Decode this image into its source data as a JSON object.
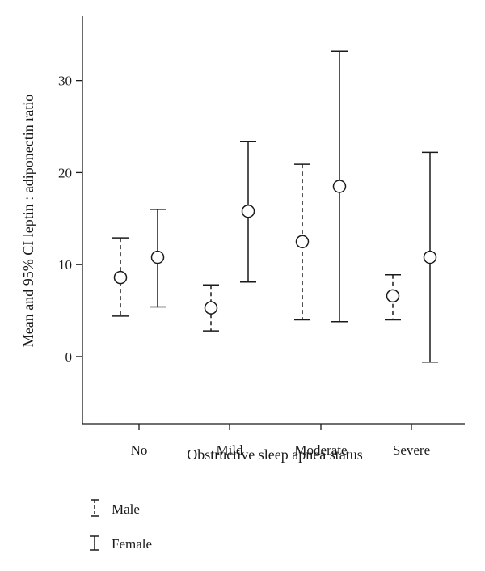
{
  "chart_data": {
    "type": "errorbar",
    "xlabel": "Obstructive sleep apnea status",
    "ylabel": "Mean and 95% CI leptin : adiponectin ratio",
    "categories": [
      "No",
      "Mild",
      "Moderate",
      "Severe"
    ],
    "ylim": [
      -7.3,
      37
    ],
    "yticks": [
      0,
      10,
      20,
      30
    ],
    "grid": false,
    "legend_position": "bottom-left",
    "series": [
      {
        "name": "Male",
        "line_style": "dashed",
        "mean": [
          8.6,
          5.3,
          12.5,
          6.6
        ],
        "lower": [
          4.4,
          2.8,
          4.0,
          4.0
        ],
        "upper": [
          12.9,
          7.8,
          20.9,
          8.9
        ]
      },
      {
        "name": "Female",
        "line_style": "solid",
        "mean": [
          10.8,
          15.8,
          18.5,
          10.8
        ],
        "lower": [
          5.4,
          8.1,
          3.8,
          -0.6
        ],
        "upper": [
          16.0,
          23.4,
          33.2,
          22.2
        ]
      }
    ]
  }
}
